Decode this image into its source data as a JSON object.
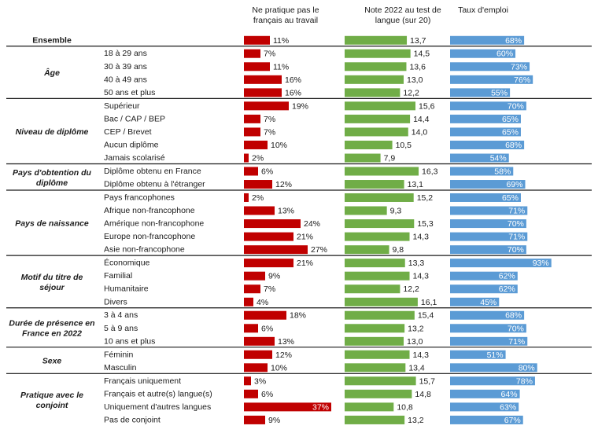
{
  "chart_data": {
    "type": "bar",
    "headers": {
      "unemployed": [
        "Ne pratique pas le",
        "français au travail"
      ],
      "score": [
        "Note 2022 au test de",
        "langue (sur 20)"
      ],
      "employment": [
        "Taux d'emploi"
      ]
    },
    "groups": [
      {
        "label": [
          "Ensemble"
        ],
        "rows": [
          {
            "category": "",
            "no_french_at_work": 11,
            "test_score": "13,7",
            "employment_rate": 68
          }
        ]
      },
      {
        "label": [
          "Âge"
        ],
        "rows": [
          {
            "category": "18 à 29 ans",
            "no_french_at_work": 7,
            "test_score": "14,5",
            "employment_rate": 60
          },
          {
            "category": "30 à 39 ans",
            "no_french_at_work": 11,
            "test_score": "13,6",
            "employment_rate": 73
          },
          {
            "category": "40 à 49 ans",
            "no_french_at_work": 16,
            "test_score": "13,0",
            "employment_rate": 76
          },
          {
            "category": "50 ans et plus",
            "no_french_at_work": 16,
            "test_score": "12,2",
            "employment_rate": 55
          }
        ]
      },
      {
        "label": [
          "Niveau de diplôme"
        ],
        "rows": [
          {
            "category": "Supérieur",
            "no_french_at_work": 19,
            "test_score": "15,6",
            "employment_rate": 70
          },
          {
            "category": "Bac / CAP / BEP",
            "no_french_at_work": 7,
            "test_score": "14,4",
            "employment_rate": 65
          },
          {
            "category": "CEP / Brevet",
            "no_french_at_work": 7,
            "test_score": "14,0",
            "employment_rate": 65
          },
          {
            "category": "Aucun diplôme",
            "no_french_at_work": 10,
            "test_score": "10,5",
            "employment_rate": 68
          },
          {
            "category": "Jamais scolarisé",
            "no_french_at_work": 2,
            "test_score": "7,9",
            "employment_rate": 54
          }
        ]
      },
      {
        "label": [
          "Pays d'obtention du",
          "diplôme"
        ],
        "rows": [
          {
            "category": "Diplôme obtenu en France",
            "no_french_at_work": 6,
            "test_score": "16,3",
            "employment_rate": 58
          },
          {
            "category": "Diplôme obtenu à l'étranger",
            "no_french_at_work": 12,
            "test_score": "13,1",
            "employment_rate": 69
          }
        ]
      },
      {
        "label": [
          "Pays de naissance"
        ],
        "rows": [
          {
            "category": "Pays francophones",
            "no_french_at_work": 2,
            "test_score": "15,2",
            "employment_rate": 65
          },
          {
            "category": "Afrique non-francophone",
            "no_french_at_work": 13,
            "test_score": "9,3",
            "employment_rate": 71
          },
          {
            "category": "Amérique non-francophone",
            "no_french_at_work": 24,
            "test_score": "15,3",
            "employment_rate": 70
          },
          {
            "category": "Europe non-francophone",
            "no_french_at_work": 21,
            "test_score": "14,3",
            "employment_rate": 71
          },
          {
            "category": "Asie non-francophone",
            "no_french_at_work": 27,
            "test_score": "9,8",
            "employment_rate": 70
          }
        ]
      },
      {
        "label": [
          "Motif du titre de",
          "séjour"
        ],
        "rows": [
          {
            "category": "Économique",
            "no_french_at_work": 21,
            "test_score": "13,3",
            "employment_rate": 93
          },
          {
            "category": "Familial",
            "no_french_at_work": 9,
            "test_score": "14,3",
            "employment_rate": 62
          },
          {
            "category": "Humanitaire",
            "no_french_at_work": 7,
            "test_score": "12,2",
            "employment_rate": 62
          },
          {
            "category": "Divers",
            "no_french_at_work": 4,
            "test_score": "16,1",
            "employment_rate": 45
          }
        ]
      },
      {
        "label": [
          "Durée de présence en",
          "France en 2022"
        ],
        "rows": [
          {
            "category": "3 à 4 ans",
            "no_french_at_work": 18,
            "test_score": "15,4",
            "employment_rate": 68
          },
          {
            "category": "5 à 9 ans",
            "no_french_at_work": 6,
            "test_score": "13,2",
            "employment_rate": 70
          },
          {
            "category": "10 ans et plus",
            "no_french_at_work": 13,
            "test_score": "13,0",
            "employment_rate": 71
          }
        ]
      },
      {
        "label": [
          "Sexe"
        ],
        "rows": [
          {
            "category": "Féminin",
            "no_french_at_work": 12,
            "test_score": "14,3",
            "employment_rate": 51
          },
          {
            "category": "Masculin",
            "no_french_at_work": 10,
            "test_score": "13,4",
            "employment_rate": 80
          }
        ]
      },
      {
        "label": [
          "Pratique avec le",
          "conjoint"
        ],
        "rows": [
          {
            "category": "Français uniquement",
            "no_french_at_work": 3,
            "test_score": "15,7",
            "employment_rate": 78
          },
          {
            "category": "Français et autre(s) langue(s)",
            "no_french_at_work": 6,
            "test_score": "14,8",
            "employment_rate": 64
          },
          {
            "category": "Uniquement d'autres langues",
            "no_french_at_work": 37,
            "test_score": "10,8",
            "employment_rate": 63
          },
          {
            "category": "Pas de conjoint",
            "no_french_at_work": 9,
            "test_score": "13,2",
            "employment_rate": 67
          }
        ]
      }
    ],
    "colors": {
      "unemployed": "#c00000",
      "score": "#70ad47",
      "employment": "#5b9bd5",
      "divider": "#1a1a1a"
    }
  }
}
